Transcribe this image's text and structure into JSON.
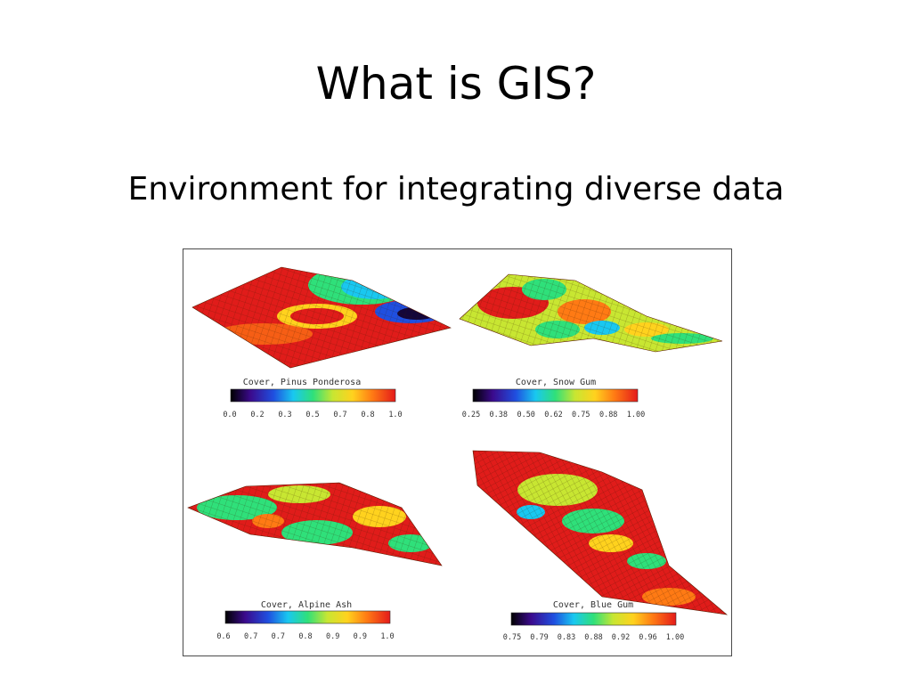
{
  "slide": {
    "title": "What is GIS?",
    "subtitle": "Environment for integrating diverse data"
  },
  "figure": {
    "panels": [
      {
        "id": "pinus",
        "label": "Cover, Pinus Ponderosa",
        "ticks": [
          "0.0",
          "0.2",
          "0.3",
          "0.5",
          "0.7",
          "0.8",
          "1.0"
        ]
      },
      {
        "id": "snow",
        "label": "Cover, Snow Gum",
        "ticks": [
          "0.25",
          "0.38",
          "0.50",
          "0.62",
          "0.75",
          "0.88",
          "1.00"
        ]
      },
      {
        "id": "alpine",
        "label": "Cover, Alpine Ash",
        "ticks": [
          "0.6",
          "0.7",
          "0.7",
          "0.8",
          "0.9",
          "0.9",
          "1.0"
        ]
      },
      {
        "id": "blue",
        "label": "Cover, Blue Gum",
        "ticks": [
          "0.75",
          "0.79",
          "0.83",
          "0.88",
          "0.92",
          "0.96",
          "1.00"
        ]
      }
    ],
    "colorbar_colors": [
      "#000000",
      "#3b0a8c",
      "#1f4fe0",
      "#19c8f0",
      "#2fe07a",
      "#c8e632",
      "#ffd21e",
      "#ff7a14",
      "#e41a1a"
    ]
  }
}
